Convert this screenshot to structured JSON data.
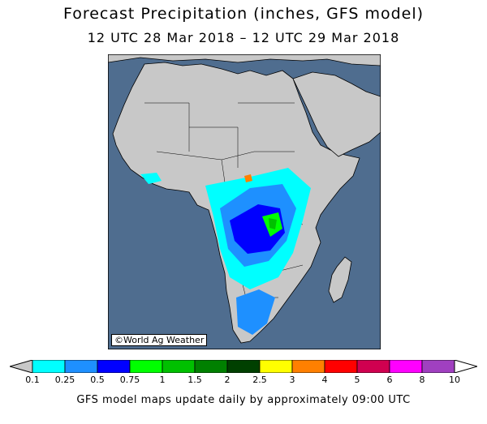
{
  "title": "Forecast Precipitation (inches, GFS model)",
  "subtitle": "12 UTC 28 Mar 2018 – 12 UTC 29 Mar 2018",
  "credit": "©World Ag Weather",
  "footer": "GFS model maps update daily by approximately 09:00 UTC",
  "colors": {
    "ocean": "#4f6d8f",
    "land": "#c8c8c8",
    "border": "#000000"
  },
  "legend": {
    "labels": [
      "0.1",
      "0.25",
      "0.5",
      "0.75",
      "1",
      "1.5",
      "2",
      "2.5",
      "3",
      "4",
      "5",
      "6",
      "8",
      "10"
    ],
    "colors": [
      "#00ffff",
      "#1e90ff",
      "#0000ff",
      "#00ff00",
      "#00c000",
      "#008000",
      "#004000",
      "#ffff00",
      "#ff8000",
      "#ff0000",
      "#d00050",
      "#ff00ff",
      "#a040c0"
    ],
    "below_color": "#c8c8c8",
    "above_color": "#ffffff"
  }
}
